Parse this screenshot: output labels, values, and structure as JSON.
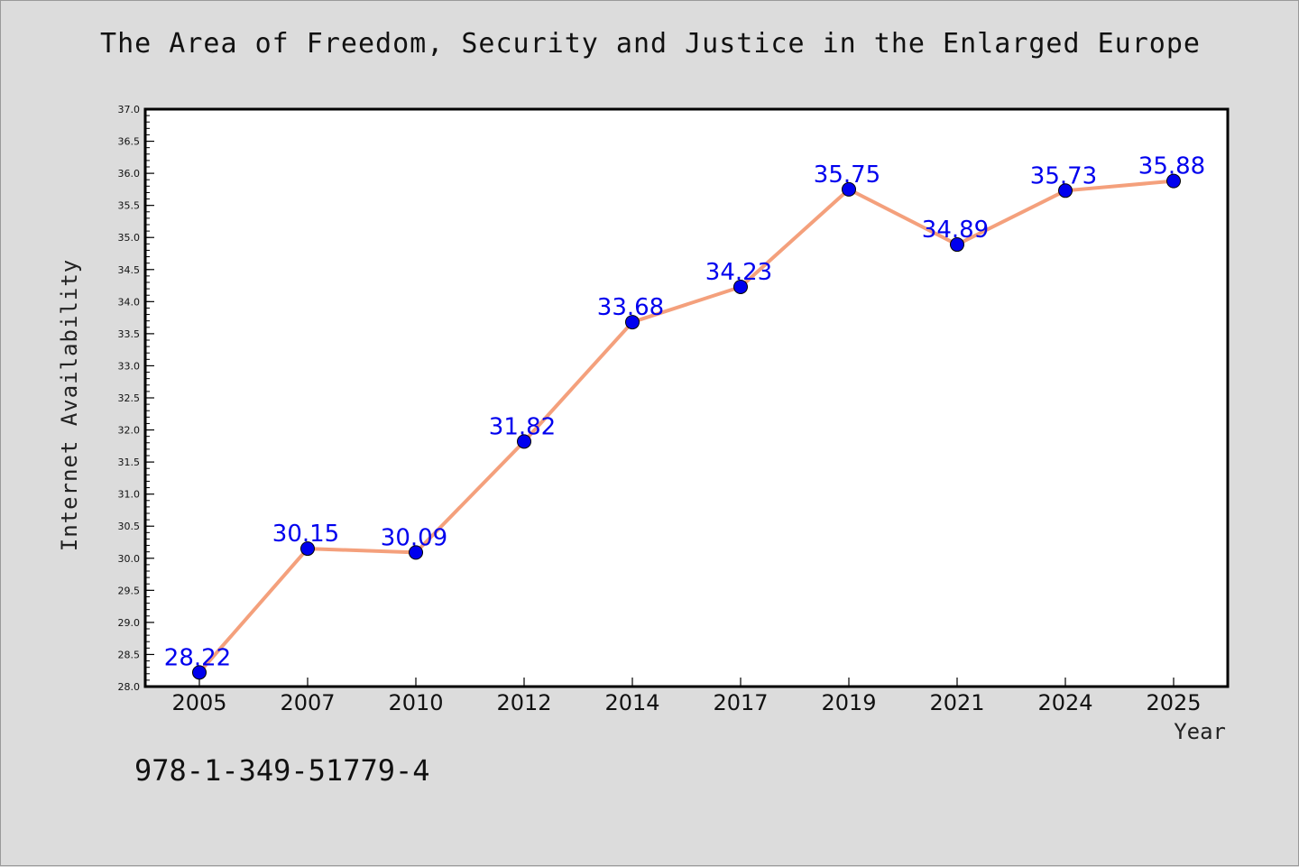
{
  "figure": {
    "isbn": "978-1-349-51779-4",
    "background_color": "#dcdcdc"
  },
  "chart_data": {
    "type": "line",
    "title": "The Area of Freedom, Security and Justice in the Enlarged Europe",
    "xlabel": "Year",
    "ylabel": "Internet Availability",
    "categories": [
      "2005",
      "2007",
      "2010",
      "2012",
      "2014",
      "2017",
      "2019",
      "2021",
      "2024",
      "2025"
    ],
    "series": [
      {
        "values": [
          28.22,
          30.15,
          30.09,
          31.82,
          33.68,
          34.23,
          35.75,
          34.89,
          35.73,
          35.88
        ],
        "line_color": "#f4a07c",
        "marker_color": "#0000ee",
        "label_color": "#0000ee"
      }
    ],
    "data_labels": [
      "28.22",
      "30.15",
      "30.09",
      "31.82",
      "33.68",
      "34.23",
      "35.75",
      "34.89",
      "35.73",
      "35.88"
    ],
    "ylim": [
      28.0,
      37.0
    ],
    "yticks": [
      "28.0",
      "28.5",
      "29.0",
      "29.5",
      "30.0",
      "30.5",
      "31.0",
      "31.5",
      "32.0",
      "32.5",
      "33.0",
      "33.5",
      "34.0",
      "34.5",
      "35.0",
      "35.5",
      "36.0",
      "36.5",
      "37.0"
    ],
    "grid": false,
    "legend": "none"
  }
}
